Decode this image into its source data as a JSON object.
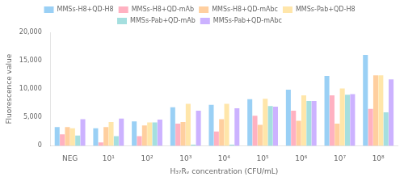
{
  "chart_data": {
    "type": "bar",
    "categories": [
      "NEG",
      "10¹",
      "10²",
      "10³",
      "10⁴",
      "10⁵",
      "10⁶",
      "10⁷",
      "10⁸"
    ],
    "series": [
      {
        "name": "MMSs-H8+QD-H8",
        "values": [
          3300,
          3100,
          4300,
          6800,
          7200,
          8200,
          9900,
          12300,
          16000
        ]
      },
      {
        "name": "MMSs-H8+QD-mAb",
        "values": [
          2000,
          600,
          1700,
          3900,
          2500,
          5300,
          6200,
          8900,
          6500
        ]
      },
      {
        "name": "MMSs-H8+QD-mAbc",
        "values": [
          3300,
          3300,
          3600,
          4200,
          4700,
          3700,
          4400,
          3900,
          12400
        ]
      },
      {
        "name": "MMSs-Pab+QD-H8",
        "values": [
          3100,
          4200,
          4100,
          7400,
          7400,
          8300,
          8900,
          10100,
          12400
        ]
      },
      {
        "name": "MMSs-Pab+QD-mAb",
        "values": [
          1800,
          1700,
          4100,
          200,
          200,
          7000,
          7900,
          9000,
          5900
        ]
      },
      {
        "name": "MMSs-Pab+QD-mAbc",
        "values": [
          4700,
          4800,
          4600,
          6200,
          6600,
          6900,
          7900,
          9100,
          11700
        ]
      }
    ],
    "xlabel": "H₃₇Rᵥ concentration (CFU/mL)",
    "ylabel": "Fluorescence value",
    "ylim": [
      0,
      20000
    ],
    "yticks": [
      0,
      {
        "value": 5000,
        "label": "5,000"
      },
      {
        "value": 10000,
        "label": "10,000"
      },
      {
        "value": 15000,
        "label": "15,000"
      },
      {
        "value": 20000,
        "label": "20,000"
      }
    ],
    "grid": false,
    "legend": "top"
  }
}
